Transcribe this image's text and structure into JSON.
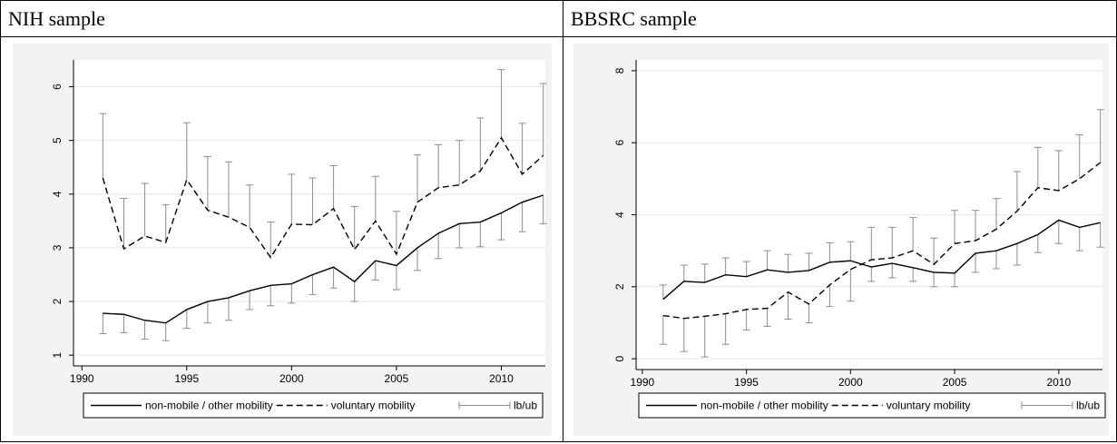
{
  "chart_data": [
    {
      "type": "line",
      "title": "NIH sample",
      "x": [
        1991,
        1992,
        1993,
        1994,
        1995,
        1996,
        1997,
        1998,
        1999,
        2000,
        2001,
        2002,
        2003,
        2004,
        2005,
        2006,
        2007,
        2008,
        2009,
        2010,
        2011,
        2012
      ],
      "xlim": [
        1989.6,
        2012.1
      ],
      "xticks": [
        1990,
        1995,
        2000,
        2005,
        2010
      ],
      "ylim": [
        0.8,
        6.5
      ],
      "yticks": [
        1,
        2,
        3,
        4,
        5,
        6
      ],
      "grid": true,
      "series": [
        {
          "name": "non-mobile / other mobility",
          "color": "#000000",
          "dash": "solid",
          "values": [
            1.78,
            1.76,
            1.65,
            1.6,
            1.85,
            2.0,
            2.07,
            2.2,
            2.3,
            2.33,
            2.5,
            2.64,
            2.37,
            2.76,
            2.67,
            3.0,
            3.27,
            3.45,
            3.48,
            3.65,
            3.85,
            3.98
          ],
          "bounds": [
            1.4,
            1.42,
            1.3,
            1.27,
            1.5,
            1.6,
            1.65,
            1.85,
            1.92,
            1.97,
            2.13,
            2.25,
            2.0,
            2.4,
            2.22,
            2.58,
            2.8,
            3.0,
            3.02,
            3.15,
            3.3,
            3.45
          ]
        },
        {
          "name": "voluntary mobility",
          "color": "#000000",
          "dash": "dashed",
          "values": [
            4.3,
            2.98,
            3.22,
            3.1,
            4.27,
            3.7,
            3.57,
            3.38,
            2.82,
            3.44,
            3.43,
            3.73,
            2.97,
            3.5,
            2.88,
            3.85,
            4.12,
            4.17,
            4.43,
            5.05,
            4.37,
            4.72
          ],
          "bounds": [
            5.5,
            3.92,
            4.2,
            3.8,
            5.33,
            4.7,
            4.6,
            4.17,
            3.48,
            4.37,
            4.3,
            4.53,
            3.77,
            4.33,
            3.68,
            4.73,
            4.92,
            5.0,
            5.42,
            6.32,
            5.32,
            6.06
          ]
        },
        {
          "name": "lb/ub",
          "color": "#8c8c8c"
        }
      ]
    },
    {
      "type": "line",
      "title": "BBSRC sample",
      "x": [
        1991,
        1992,
        1993,
        1994,
        1995,
        1996,
        1997,
        1998,
        1999,
        2000,
        2001,
        2002,
        2003,
        2004,
        2005,
        2006,
        2007,
        2008,
        2009,
        2010,
        2011,
        2012
      ],
      "xlim": [
        1989.7,
        2012.1
      ],
      "xticks": [
        1990,
        1995,
        2000,
        2005,
        2010
      ],
      "ylim": [
        -0.3,
        8.3
      ],
      "yticks": [
        0,
        2,
        4,
        6,
        8
      ],
      "grid": true,
      "series": [
        {
          "name": "non-mobile / other mobility",
          "color": "#000000",
          "dash": "solid",
          "values": [
            1.65,
            2.15,
            2.12,
            2.33,
            2.28,
            2.47,
            2.4,
            2.45,
            2.68,
            2.72,
            2.55,
            2.65,
            2.53,
            2.4,
            2.38,
            2.93,
            3.0,
            3.2,
            3.45,
            3.85,
            3.65,
            3.78
          ],
          "bounds": [
            2.05,
            2.6,
            2.63,
            2.8,
            2.7,
            3.0,
            2.9,
            2.93,
            3.22,
            3.25,
            2.15,
            2.25,
            2.15,
            2.0,
            2.0,
            2.4,
            2.5,
            2.6,
            2.95,
            3.2,
            3.0,
            3.1
          ]
        },
        {
          "name": "voluntary mobility",
          "color": "#000000",
          "dash": "dashed",
          "values": [
            1.2,
            1.12,
            1.18,
            1.25,
            1.37,
            1.4,
            1.85,
            1.52,
            2.05,
            2.48,
            2.75,
            2.8,
            3.0,
            2.62,
            3.2,
            3.28,
            3.6,
            4.1,
            4.75,
            4.67,
            5.0,
            5.45
          ],
          "bounds": [
            0.4,
            0.2,
            0.05,
            0.4,
            0.8,
            0.9,
            1.1,
            1.0,
            1.45,
            1.6,
            3.65,
            3.65,
            3.92,
            3.35,
            4.12,
            4.12,
            4.45,
            5.2,
            5.87,
            5.78,
            6.22,
            6.92
          ]
        },
        {
          "name": "lb/ub",
          "color": "#8c8c8c"
        }
      ]
    }
  ]
}
